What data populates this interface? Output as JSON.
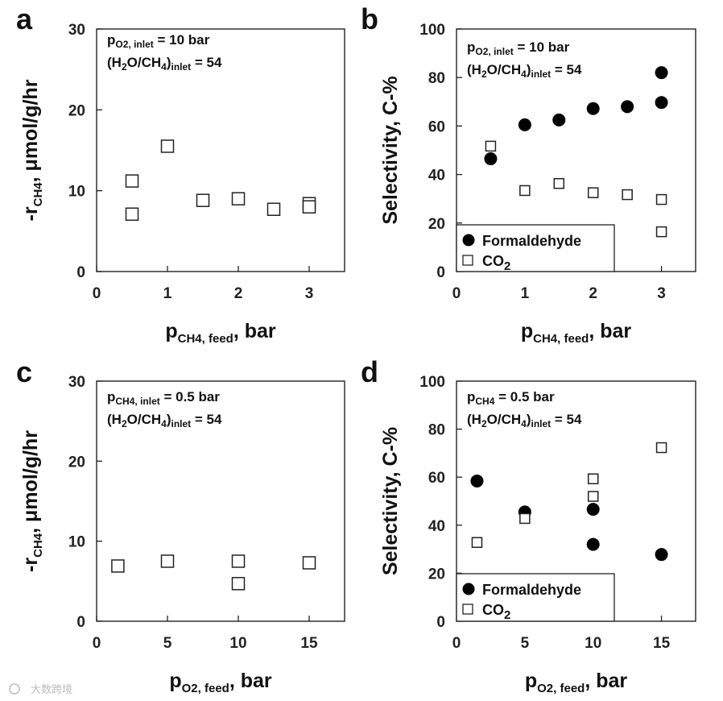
{
  "chart_data": [
    {
      "panel": "a",
      "type": "scatter",
      "xlabel": {
        "main": "p",
        "sub": "CH4, feed",
        "tail": ", bar"
      },
      "ylabel": {
        "pre": "-r",
        "sub": "CH4",
        "tail": ", μmol/g/hr"
      },
      "xlim": [
        0,
        3.5
      ],
      "ylim": [
        0,
        30
      ],
      "xticks": [
        "0",
        "1",
        "2",
        "3"
      ],
      "yticks": [
        "0",
        "10",
        "20",
        "30"
      ],
      "annotation": {
        "line1": {
          "pre": "p",
          "sub": "O2, inlet",
          "tail": " = 10 bar"
        },
        "line2": {
          "pre": "(H",
          "sub1": "2",
          "mid": "O/CH",
          "sub2": "4",
          "close": ")",
          "sub3": "inlet",
          "tail": " = 54"
        }
      },
      "series": [
        {
          "name": "rate",
          "marker": "open-square",
          "x": [
            0.5,
            0.5,
            1.0,
            1.5,
            2.0,
            2.5,
            3.0,
            3.0
          ],
          "y": [
            11.2,
            7.1,
            15.5,
            8.8,
            9.0,
            7.7,
            8.4,
            8.0
          ]
        }
      ]
    },
    {
      "panel": "b",
      "type": "scatter",
      "xlabel": {
        "main": "p",
        "sub": "CH4, feed",
        "tail": ", bar"
      },
      "ylabel": {
        "pre": "Selectivity, C-%"
      },
      "xlim": [
        0,
        3.5
      ],
      "ylim": [
        0,
        100
      ],
      "xticks": [
        "0",
        "1",
        "2",
        "3"
      ],
      "yticks": [
        "0",
        "20",
        "40",
        "60",
        "80",
        "100"
      ],
      "annotation": {
        "line1": {
          "pre": "p",
          "sub": "O2, inlet",
          "tail": " = 10 bar"
        },
        "line2": {
          "pre": "(H",
          "sub1": "2",
          "mid": "O/CH",
          "sub2": "4",
          "close": ")",
          "sub3": "inlet",
          "tail": " = 54"
        }
      },
      "legend": {
        "formaldehyde": "Formaldehyde",
        "co2_pre": "CO",
        "co2_sub": "2"
      },
      "series": [
        {
          "name": "Formaldehyde",
          "marker": "filled-circle",
          "x": [
            0.5,
            1.0,
            1.5,
            2.0,
            2.5,
            3.0,
            3.0
          ],
          "y": [
            46.5,
            60.5,
            62.5,
            67.2,
            68.0,
            82.0,
            69.7
          ]
        },
        {
          "name": "CO2",
          "marker": "open-square",
          "x": [
            0.5,
            1.0,
            1.5,
            2.0,
            2.5,
            3.0,
            3.0
          ],
          "y": [
            51.7,
            33.4,
            36.3,
            32.5,
            31.7,
            29.7,
            16.4
          ]
        }
      ]
    },
    {
      "panel": "c",
      "type": "scatter",
      "xlabel": {
        "main": "p",
        "sub": "O2, feed",
        "tail": ", bar"
      },
      "ylabel": {
        "pre": "-r",
        "sub": "CH4",
        "tail": ", μmol/g/hr"
      },
      "xlim": [
        0,
        17.5
      ],
      "ylim": [
        0,
        30
      ],
      "xticks": [
        "0",
        "5",
        "10",
        "15"
      ],
      "yticks": [
        "0",
        "10",
        "20",
        "30"
      ],
      "annotation": {
        "line1": {
          "pre": "p",
          "sub": "CH4, inlet",
          "tail": " = 0.5 bar"
        },
        "line2": {
          "pre": "(H",
          "sub1": "2",
          "mid": "O/CH",
          "sub2": "4",
          "close": ")",
          "sub3": "inlet",
          "tail": " = 54"
        }
      },
      "series": [
        {
          "name": "rate",
          "marker": "open-square",
          "x": [
            1.5,
            5.0,
            10.0,
            10.0,
            15.0
          ],
          "y": [
            6.9,
            7.5,
            7.5,
            4.7,
            7.3
          ]
        }
      ]
    },
    {
      "panel": "d",
      "type": "scatter",
      "xlabel": {
        "main": "p",
        "sub": "O2, feed",
        "tail": ", bar"
      },
      "ylabel": {
        "pre": "Selectivity, C-%"
      },
      "xlim": [
        0,
        17.5
      ],
      "ylim": [
        0,
        100
      ],
      "xticks": [
        "0",
        "5",
        "10",
        "15"
      ],
      "yticks": [
        "0",
        "20",
        "40",
        "60",
        "80",
        "100"
      ],
      "annotation": {
        "line1": {
          "pre": "p",
          "sub": "CH4",
          "tail": " = 0.5 bar"
        },
        "line2": {
          "pre": "(H",
          "sub1": "2",
          "mid": "O/CH",
          "sub2": "4",
          "close": ")",
          "sub3": "inlet",
          "tail": " = 54"
        }
      },
      "legend": {
        "formaldehyde": "Formaldehyde",
        "co2_pre": "CO",
        "co2_sub": "2"
      },
      "series": [
        {
          "name": "Formaldehyde",
          "marker": "filled-circle",
          "x": [
            1.5,
            5.0,
            10.0,
            10.0,
            15.0
          ],
          "y": [
            58.4,
            45.5,
            46.6,
            32.0,
            27.8
          ]
        },
        {
          "name": "CO2",
          "marker": "open-square",
          "x": [
            1.5,
            5.0,
            10.0,
            10.0,
            15.0
          ],
          "y": [
            32.8,
            42.8,
            59.3,
            52.0,
            72.3
          ]
        }
      ]
    }
  ],
  "watermark": "大数跨境"
}
